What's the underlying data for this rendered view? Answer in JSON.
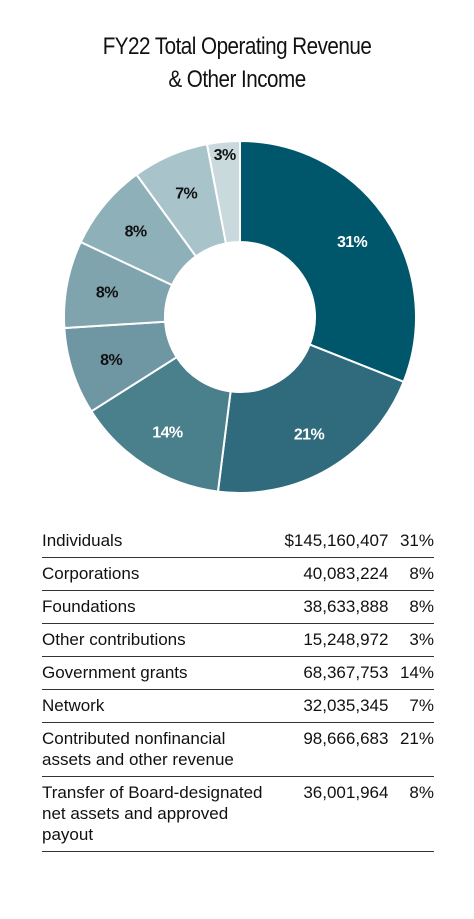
{
  "title_line1": "FY22 Total Operating Revenue",
  "title_line2": "& Other Income",
  "chart_data": {
    "type": "pie",
    "variant": "donut",
    "slices": [
      {
        "label": "31%",
        "value": 31,
        "color": "#00576b"
      },
      {
        "label": "21%",
        "value": 21,
        "color": "#2f6b7d"
      },
      {
        "label": "14%",
        "value": 14,
        "color": "#4a7f8c"
      },
      {
        "label": "8%",
        "value": 8,
        "color": "#6e97a3"
      },
      {
        "label": "8%",
        "value": 8,
        "color": "#7fa4ae"
      },
      {
        "label": "8%",
        "value": 8,
        "color": "#8eb0b9"
      },
      {
        "label": "7%",
        "value": 7,
        "color": "#a9c3ca"
      },
      {
        "label": "3%",
        "value": 3,
        "color": "#c9d9dd"
      }
    ],
    "label_colors": [
      "#ffffff",
      "#ffffff",
      "#ffffff",
      "#111111",
      "#111111",
      "#111111",
      "#111111",
      "#111111"
    ]
  },
  "rows": [
    {
      "name": "Individuals",
      "amount": "$145,160,407",
      "pct": "31%"
    },
    {
      "name": "Corporations",
      "amount": "40,083,224",
      "pct": "8%"
    },
    {
      "name": "Foundations",
      "amount": "38,633,888",
      "pct": "8%"
    },
    {
      "name": "Other contributions",
      "amount": "15,248,972",
      "pct": "3%"
    },
    {
      "name": "Government grants",
      "amount": "68,367,753",
      "pct": "14%"
    },
    {
      "name": "Network",
      "amount": "32,035,345",
      "pct": "7%"
    },
    {
      "name": "Contributed nonfinancial assets and other revenue",
      "amount": "98,666,683",
      "pct": "21%"
    },
    {
      "name": "Transfer of Board-designated net assets and approved payout",
      "amount": "36,001,964",
      "pct": "8%"
    }
  ]
}
